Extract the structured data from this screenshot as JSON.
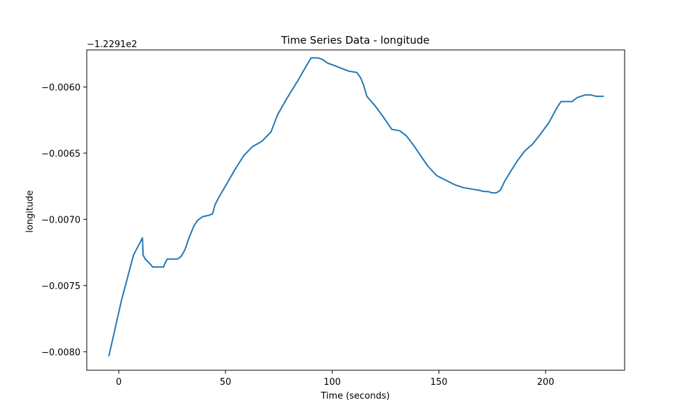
{
  "chart_data": {
    "type": "line",
    "title": "Time Series Data - longitude",
    "xlabel": "Time (seconds)",
    "ylabel": "longitude",
    "offset_label": "−1.2291e2",
    "xlim": [
      -15,
      237
    ],
    "ylim": [
      -0.00814,
      -0.00572
    ],
    "xticks": [
      0,
      50,
      100,
      150,
      200
    ],
    "xtick_labels": [
      "0",
      "50",
      "100",
      "150",
      "200"
    ],
    "yticks": [
      -0.008,
      -0.0075,
      -0.007,
      -0.0065,
      -0.006
    ],
    "ytick_labels": [
      "−0.0080",
      "−0.0075",
      "−0.0070",
      "−0.0065",
      "−0.0060"
    ],
    "grid": false,
    "colors": {
      "line": "#1f77b4",
      "axes": "#000000",
      "background": "#ffffff"
    },
    "series": [
      {
        "x": [
          -4.6,
          1.3,
          6.9,
          11.1,
          11.4,
          12.4,
          14.3,
          15.9,
          18.2,
          21.0,
          21.7,
          22.7,
          25.1,
          27.6,
          29.2,
          31.0,
          32.9,
          35.2,
          36.8,
          39.2,
          42.1,
          43.9,
          45.1,
          47.0,
          50.3,
          54.2,
          58.5,
          62.7,
          67.1,
          71.3,
          74.4,
          79.0,
          84.0,
          87.9,
          90.1,
          93.2,
          95.2,
          97.9,
          101.4,
          104.4,
          107.7,
          111.5,
          113.3,
          114.8,
          116.2,
          117.8,
          120.0,
          124.1,
          127.9,
          131.6,
          134.8,
          138.1,
          141.5,
          144.9,
          149.0,
          153.9,
          157.6,
          161.4,
          164.9,
          168.7,
          171.2,
          173.1,
          175.0,
          176.9,
          178.8,
          180.9,
          183.9,
          187.1,
          190.4,
          194.0,
          197.4,
          201.5,
          205.2,
          207.2,
          209.2,
          212.4,
          214.8,
          218.6,
          221.3,
          223.5,
          227.0
        ],
        "y": [
          -0.00803,
          -0.00761,
          -0.00727,
          -0.00714,
          -0.00727,
          -0.0073,
          -0.00733,
          -0.00736,
          -0.00736,
          -0.00736,
          -0.00733,
          -0.0073,
          -0.0073,
          -0.0073,
          -0.00728,
          -0.00723,
          -0.00714,
          -0.00705,
          -0.00701,
          -0.00698,
          -0.00697,
          -0.00696,
          -0.00689,
          -0.00683,
          -0.00674,
          -0.00663,
          -0.00652,
          -0.00645,
          -0.00641,
          -0.00634,
          -0.00621,
          -0.00608,
          -0.00595,
          -0.00584,
          -0.00578,
          -0.00578,
          -0.00579,
          -0.00582,
          -0.00584,
          -0.00586,
          -0.00588,
          -0.00589,
          -0.00593,
          -0.00599,
          -0.00607,
          -0.0061,
          -0.00614,
          -0.00623,
          -0.00632,
          -0.00633,
          -0.00637,
          -0.00644,
          -0.00652,
          -0.0066,
          -0.00667,
          -0.00671,
          -0.00674,
          -0.00676,
          -0.00677,
          -0.00678,
          -0.00679,
          -0.00679,
          -0.0068,
          -0.0068,
          -0.00678,
          -0.00671,
          -0.00663,
          -0.00655,
          -0.00648,
          -0.00643,
          -0.00636,
          -0.00627,
          -0.00616,
          -0.00611,
          -0.00611,
          -0.00611,
          -0.00608,
          -0.00606,
          -0.00606,
          -0.00607,
          -0.00607
        ]
      }
    ]
  }
}
